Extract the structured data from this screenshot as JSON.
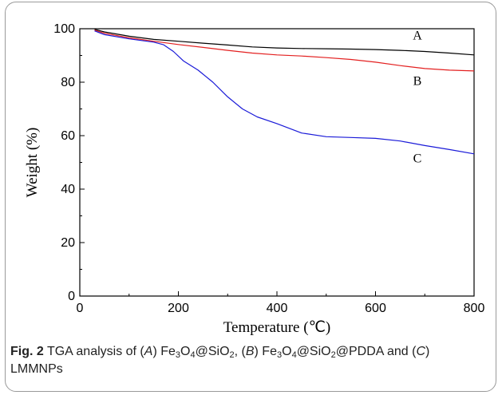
{
  "chart_data": {
    "type": "line",
    "xlabel": "Temperature (℃)",
    "ylabel": "Weight (%)",
    "xlim": [
      0,
      800
    ],
    "ylim": [
      0,
      100
    ],
    "xticks": [
      0,
      200,
      400,
      600,
      800
    ],
    "yticks": [
      0,
      20,
      40,
      60,
      80,
      100
    ],
    "grid": false,
    "legend": "none",
    "series": [
      {
        "name": "A",
        "color": "#000000",
        "x": [
          30,
          50,
          100,
          150,
          200,
          250,
          300,
          350,
          400,
          450,
          500,
          550,
          600,
          650,
          700,
          750,
          800
        ],
        "y": [
          99.8,
          98.8,
          97.2,
          96.0,
          95.3,
          94.6,
          93.9,
          93.2,
          92.8,
          92.6,
          92.5,
          92.4,
          92.2,
          91.9,
          91.5,
          90.9,
          90.2
        ]
      },
      {
        "name": "B",
        "color": "#e32020",
        "x": [
          30,
          50,
          100,
          150,
          200,
          250,
          300,
          350,
          400,
          450,
          500,
          550,
          600,
          650,
          700,
          750,
          800
        ],
        "y": [
          99.5,
          98.3,
          96.6,
          95.3,
          94.1,
          93.0,
          91.9,
          90.9,
          90.2,
          89.8,
          89.2,
          88.5,
          87.5,
          86.2,
          85.1,
          84.5,
          84.2
        ]
      },
      {
        "name": "C",
        "color": "#1a1ad8",
        "x": [
          30,
          50,
          100,
          150,
          170,
          190,
          210,
          240,
          270,
          300,
          330,
          360,
          400,
          450,
          500,
          550,
          600,
          650,
          700,
          750,
          800
        ],
        "y": [
          99.2,
          97.8,
          96.2,
          95.0,
          94.0,
          91.5,
          88.0,
          84.5,
          80.0,
          74.5,
          70.0,
          67.0,
          64.5,
          61.0,
          59.6,
          59.3,
          59.0,
          58.0,
          56.3,
          54.8,
          53.2
        ]
      }
    ],
    "annotations": [
      {
        "text": "A",
        "x": 685,
        "y": 97.5
      },
      {
        "text": "B",
        "x": 685,
        "y": 80.5
      },
      {
        "text": "C",
        "x": 685,
        "y": 51.5
      }
    ]
  },
  "caption": {
    "label": "Fig. 2",
    "t1": " TGA analysis of (",
    "a": "A",
    "t2": ") Fe",
    "s1": "3",
    "t3": "O",
    "s2": "4",
    "t4": "@SiO",
    "s3": "2",
    "t5": ", (",
    "b": "B",
    "t6": ") Fe",
    "s4": "3",
    "t7": "O",
    "s5": "4",
    "t8": "@SiO",
    "s6": "2",
    "t9": "@PDDA and (",
    "c": "C",
    "t10": ")",
    "line2": "LMMNPs"
  }
}
